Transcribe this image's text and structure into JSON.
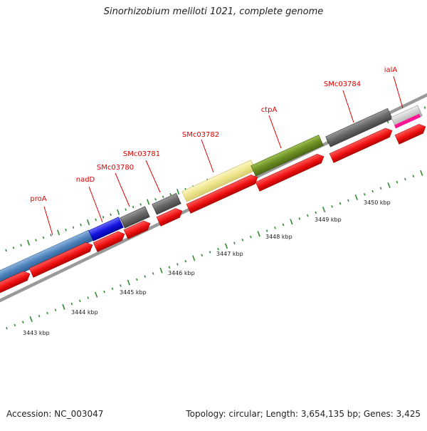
{
  "title": "Sinorhizobium meliloti 1021, complete genome",
  "footer": {
    "accession": "Accession: NC_003047",
    "summary": "Topology: circular; Length: 3,654,135 bp; Genes: 3,425"
  },
  "kbp_labels": [
    "3443 kbp",
    "3444 kbp",
    "3445 kbp",
    "3446 kbp",
    "3447 kbp",
    "3448 kbp",
    "3449 kbp",
    "3450 kbp"
  ],
  "colors": {
    "cds": "#ee1111",
    "label": "#e00000",
    "tick": "#2e8b2e",
    "backbone": "#999999",
    "proA": "#4a7fb8",
    "nadD": "#1515e0",
    "hypothetical": "#666666",
    "SMc03782": "#f0e68c",
    "ctpA": "#6b8e23",
    "ialA": "#c0c0c0",
    "ialA_accent": "#ff1493"
  },
  "gene_labels": [
    {
      "name": "proA"
    },
    {
      "name": "nadD"
    },
    {
      "name": "SMc03780"
    },
    {
      "name": "SMc03781"
    },
    {
      "name": "SMc03782"
    },
    {
      "name": "ctpA"
    },
    {
      "name": "SMc03784"
    },
    {
      "name": "ialA"
    }
  ]
}
